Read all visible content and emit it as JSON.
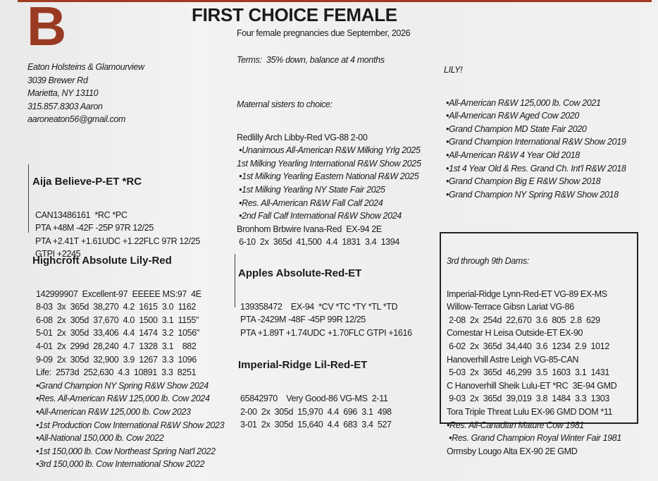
{
  "page": {
    "accent_color": "#9b3a22",
    "section_letter": "B",
    "title": "FIRST CHOICE FEMALE",
    "subtitle": "Four female pregnancies due September, 2026",
    "terms": "Terms:  35% down, balance at 4 months"
  },
  "contact": {
    "lines": [
      "Eaton Holsteins & Glamourview",
      "3039 Brewer Rd",
      "Marietta, NY 13110",
      "315.857.8303 Aaron",
      "aaroneaton56@gmail.com"
    ]
  },
  "sire": {
    "name": "Aija Believe-P-ET *RC",
    "lines": [
      "CAN13486161  *RC *PC",
      "PTA +48M -42F -25P 97R 12/25",
      "PTA +2.41T +1.61UDC +1.22FLC 97R 12/25",
      "GTPI +2245"
    ]
  },
  "dam": {
    "name": "Highcroft Absolute Lily-Red",
    "lines": [
      "142999907  Excellent-97  EEEEE MS:97  4E",
      "8-03  3x  365d  38,270  4.2  1615  3.0  1162",
      "6-08  2x  305d  37,670  4.0  1500  3.1  1155\"",
      "5-01  2x  305d  33,406  4.4  1474  3.2  1056\"",
      "4-01  2x  299d  28,240  4.7  1328  3.1    882",
      "9-09  2x  305d  32,900  3.9  1267  3.3  1096",
      "Life:  2573d  252,630  4.3  10891  3.3  8251"
    ],
    "awards": [
      "•Grand Champion NY Spring R&W Show 2024",
      "•Res. All-American R&W 125,000 lb. Cow 2024",
      "•All-American R&W 125,000 lb. Cow 2023",
      "•1st Production Cow International R&W Show 2023",
      "•All-National 150,000 lb. Cow 2022",
      "•1st 150,000 lb. Cow Northeast Spring Nat'l 2022",
      "•3rd 150,000 lb. Cow International Show 2022"
    ]
  },
  "sisters": {
    "heading": "Maternal sisters to choice:",
    "lines": [
      {
        "text": "Redlilly Arch Libby-Red VG-88 2-00",
        "italic": false
      },
      {
        "text": " •Unanimous All-American R&W Milking Yrlg 2025",
        "italic": true
      },
      {
        "text": "1st Milking Yearling International R&W Show 2025",
        "italic": true
      },
      {
        "text": " •1st Milking Yearling Eastern National R&W 2025",
        "italic": true
      },
      {
        "text": " •1st Milking Yearling NY State Fair 2025",
        "italic": true
      },
      {
        "text": " •Res. All-American R&W Fall Calf 2024",
        "italic": true
      },
      {
        "text": " •2nd Fall Calf International R&W Show 2024",
        "italic": true
      },
      {
        "text": "Bronhom Brbwire Ivana-Red  EX-94 2E",
        "italic": false
      },
      {
        "text": " 6-10  2x  365d  41,500  4.4  1831  3.4  1394",
        "italic": false
      }
    ]
  },
  "maternal_grandsire": {
    "name": "Apples Absolute-Red-ET",
    "lines": [
      "139358472    EX-94  *CV *TC *TY *TL *TD",
      "PTA -2429M -48F -45P 99R 12/25",
      "PTA +1.89T +1.74UDC +1.70FLC GTPI +1616"
    ]
  },
  "granddam": {
    "name": "Imperial-Ridge Lil-Red-ET",
    "lines": [
      "65842970    Very Good-86 VG-MS  2-11",
      "2-00  2x  305d  15,970  4.4  696  3.1  498",
      "3-01  2x  305d  15,640  4.4  683  3.4  527"
    ]
  },
  "lily": {
    "heading": "LILY!",
    "awards": [
      "•All-American R&W 125,000 lb. Cow 2021",
      "•All-American R&W Aged Cow 2020",
      "•Grand Champion MD State Fair 2020",
      "•Grand Champion International R&W Show 2019",
      "•All-American R&W 4 Year Old 2018",
      "•1st 4 Year Old & Res. Grand Ch. Int'l R&W 2018",
      "•Grand Champion Big E R&W Show 2018",
      "•Grand Champion NY Spring R&W Show 2018"
    ]
  },
  "dams_box": {
    "heading": "3rd through 9th Dams:",
    "lines": [
      {
        "text": "Imperial-Ridge Lynn-Red-ET VG-89 EX-MS",
        "italic": false
      },
      {
        "text": "Willow-Terrace Gibsn Lariat VG-86",
        "italic": false
      },
      {
        "text": " 2-08  2x  254d  22,670  3.6  805  2.8  629",
        "italic": false
      },
      {
        "text": "Comestar H Leisa Outside-ET EX-90",
        "italic": false
      },
      {
        "text": " 6-02  2x  365d  34,440  3.6  1234  2.9  1012",
        "italic": false
      },
      {
        "text": "Hanoverhill Astre Leigh VG-85-CAN",
        "italic": false
      },
      {
        "text": " 5-03  2x  365d  46,299  3.5  1603  3.1  1431",
        "italic": false
      },
      {
        "text": "C Hanoverhill Sheik Lulu-ET *RC  3E-94 GMD",
        "italic": false
      },
      {
        "text": " 9-03  2x  365d  39,019  3.8  1484  3.3  1303",
        "italic": false
      },
      {
        "text": "Tora Triple Threat Lulu EX-96 GMD DOM *11",
        "italic": false
      },
      {
        "text": "•Res. All-Canadian Mature Cow 1981",
        "italic": true
      },
      {
        "text": " •Res. Grand Champion Royal Winter Fair 1981",
        "italic": true
      },
      {
        "text": "Ormsby Lougo Alta EX-90 2E GMD",
        "italic": false
      }
    ]
  }
}
